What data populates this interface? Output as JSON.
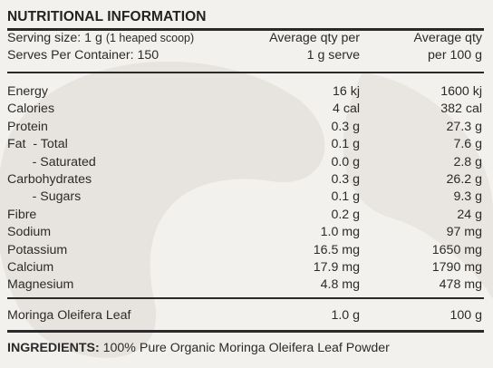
{
  "title": "NUTRITIONAL INFORMATION",
  "serving": {
    "size_label": "Serving size: 1 g",
    "size_note": "(1 heaped scoop)",
    "serves_label": "Serves Per Container: 150"
  },
  "columns": {
    "per_serve_line1": "Average qty per",
    "per_serve_line2": "1 g serve",
    "per_100_line1": "Average qty",
    "per_100_line2": "per 100 g"
  },
  "nutrients": [
    {
      "name": "Energy",
      "per_serve": "16 kj",
      "per_100g": "1600 kj"
    },
    {
      "name": "Calories",
      "per_serve": "4 cal",
      "per_100g": "382 cal"
    },
    {
      "name": "Protein",
      "per_serve": "0.3 g",
      "per_100g": "27.3 g"
    },
    {
      "name": "Fat  - Total",
      "per_serve": "0.1 g",
      "per_100g": "7.6 g"
    },
    {
      "name": "       - Saturated",
      "per_serve": "0.0 g",
      "per_100g": "2.8 g"
    },
    {
      "name": "Carbohydrates",
      "per_serve": "0.3 g",
      "per_100g": "26.2 g"
    },
    {
      "name": "       - Sugars",
      "per_serve": "0.1 g",
      "per_100g": "9.3 g"
    },
    {
      "name": "Fibre",
      "per_serve": "0.2 g",
      "per_100g": "24 g"
    },
    {
      "name": "Sodium",
      "per_serve": "1.0 mg",
      "per_100g": "97 mg"
    },
    {
      "name": "Potassium",
      "per_serve": "16.5 mg",
      "per_100g": "1650 mg"
    },
    {
      "name": "Calcium",
      "per_serve": "17.9 mg",
      "per_100g": "1790 mg"
    },
    {
      "name": "Magnesium",
      "per_serve": "4.8 mg",
      "per_100g": "478 mg"
    }
  ],
  "ingredient_row": {
    "name": "Moringa Oleifera Leaf",
    "per_serve": "1.0 g",
    "per_100g": "100 g"
  },
  "ingredients": {
    "label": "INGREDIENTS:",
    "text": " 100% Pure Organic Moringa Oleifera Leaf Powder"
  }
}
